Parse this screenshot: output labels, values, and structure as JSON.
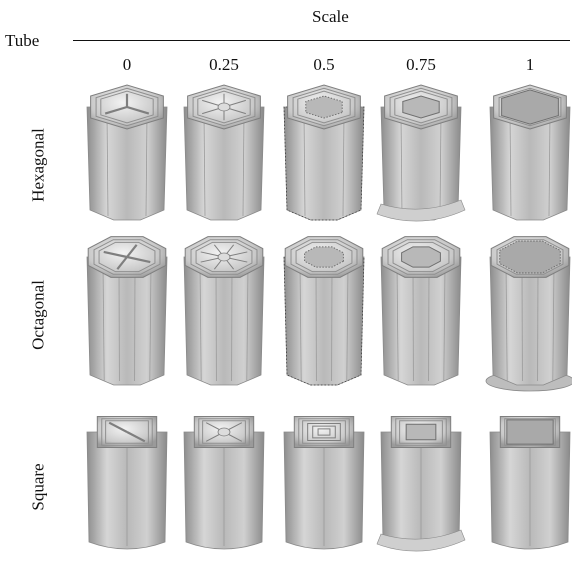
{
  "header": {
    "corner_label": "Tube",
    "group_label": "Scale"
  },
  "columns": [
    "0",
    "0.25",
    "0.5",
    "0.75",
    "1"
  ],
  "rows": [
    "Hexagonal",
    "Octagonal",
    "Square"
  ],
  "figure": {
    "cells": [
      [
        {
          "pattern": "spokes"
        },
        {
          "pattern": "star"
        },
        {
          "pattern": "dotted-ring"
        },
        {
          "pattern": "ring-flare"
        },
        {
          "pattern": "open"
        }
      ],
      [
        {
          "pattern": "spokes"
        },
        {
          "pattern": "star"
        },
        {
          "pattern": "dotted-ring"
        },
        {
          "pattern": "ring"
        },
        {
          "pattern": "open-flange"
        }
      ],
      [
        {
          "pattern": "spokes"
        },
        {
          "pattern": "star"
        },
        {
          "pattern": "nested"
        },
        {
          "pattern": "ring-flare"
        },
        {
          "pattern": "open"
        }
      ]
    ]
  }
}
